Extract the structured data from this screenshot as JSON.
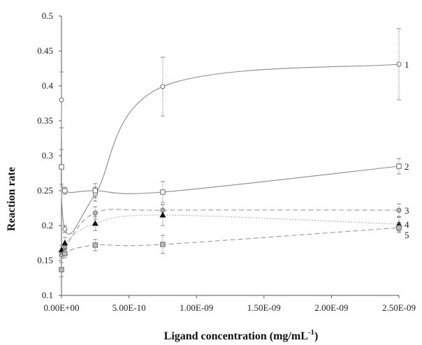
{
  "chart_data": {
    "type": "line",
    "xlabel_main": "Ligand concentration (mg/mL",
    "xlabel_sup": "-1",
    "xlabel_end": ")",
    "ylabel": "Reaction rate",
    "xlim": [
      0,
      2.5e-09
    ],
    "ylim": [
      0.1,
      0.5
    ],
    "grid": false,
    "x_tick_labels": [
      "0.00E+00",
      "5.00E-10",
      "1.00E-09",
      "1.50E-09",
      "2.00E-09",
      "2.50E-09"
    ],
    "x_ticks": [
      0,
      5e-10,
      1e-09,
      1.5e-09,
      2e-09,
      2.5e-09
    ],
    "y_tick_labels": [
      "0.1",
      "0.15",
      "0.2",
      "0.25",
      "0.3",
      "0.35",
      "0.4",
      "0.45",
      "0.5"
    ],
    "y_ticks": [
      0.1,
      0.15,
      0.2,
      0.25,
      0.3,
      0.35,
      0.4,
      0.45,
      0.5
    ],
    "series": [
      {
        "name": "1",
        "marker": "circle",
        "line": "solid",
        "points": [
          {
            "x": 0,
            "y": 0.38,
            "err": 0.04
          },
          {
            "x": 2.5e-11,
            "y": 0.195,
            "err": 0.005
          },
          {
            "x": 2.5e-10,
            "y": 0.245,
            "err": 0.01
          },
          {
            "x": 7.5e-10,
            "y": 0.399,
            "err": 0.042
          },
          {
            "x": 2.5e-09,
            "y": 0.431,
            "err": 0.051
          }
        ]
      },
      {
        "name": "2",
        "marker": "square",
        "line": "solid",
        "points": [
          {
            "x": 0,
            "y": 0.284,
            "err": 0.025
          },
          {
            "x": 2.5e-11,
            "y": 0.25,
            "err": 0.005
          },
          {
            "x": 2.5e-10,
            "y": 0.25,
            "err": 0.01
          },
          {
            "x": 7.5e-10,
            "y": 0.248,
            "err": 0.015
          },
          {
            "x": 2.5e-09,
            "y": 0.285,
            "err": 0.011
          }
        ]
      },
      {
        "name": "3",
        "marker": "circle-gray",
        "line": "dashed",
        "points": [
          {
            "x": 0,
            "y": 0.158,
            "err": 0.005
          },
          {
            "x": 2.5e-11,
            "y": 0.168,
            "err": 0.006
          },
          {
            "x": 2.5e-10,
            "y": 0.218,
            "err": 0.009
          },
          {
            "x": 7.5e-10,
            "y": 0.222,
            "err": 0.008
          },
          {
            "x": 2.5e-09,
            "y": 0.222,
            "err": 0.009
          }
        ]
      },
      {
        "name": "4",
        "marker": "triangle",
        "line": "dotted",
        "points": [
          {
            "x": 0,
            "y": 0.165,
            "err": 0.006
          },
          {
            "x": 2.5e-11,
            "y": 0.175,
            "err": 0.008
          },
          {
            "x": 2.5e-10,
            "y": 0.203,
            "err": 0.01
          },
          {
            "x": 7.5e-10,
            "y": 0.215,
            "err": 0.015
          },
          {
            "x": 2.5e-09,
            "y": 0.202,
            "err": 0.01
          }
        ]
      },
      {
        "name": "5",
        "marker": "square-gray",
        "line": "dashed",
        "points": [
          {
            "x": 0,
            "y": 0.137,
            "err": 0.01
          },
          {
            "x": 2.5e-11,
            "y": 0.16,
            "err": 0.006
          },
          {
            "x": 2.5e-10,
            "y": 0.172,
            "err": 0.008
          },
          {
            "x": 7.5e-10,
            "y": 0.173,
            "err": 0.013
          },
          {
            "x": 2.5e-09,
            "y": 0.197,
            "err": 0.007
          }
        ]
      }
    ]
  }
}
